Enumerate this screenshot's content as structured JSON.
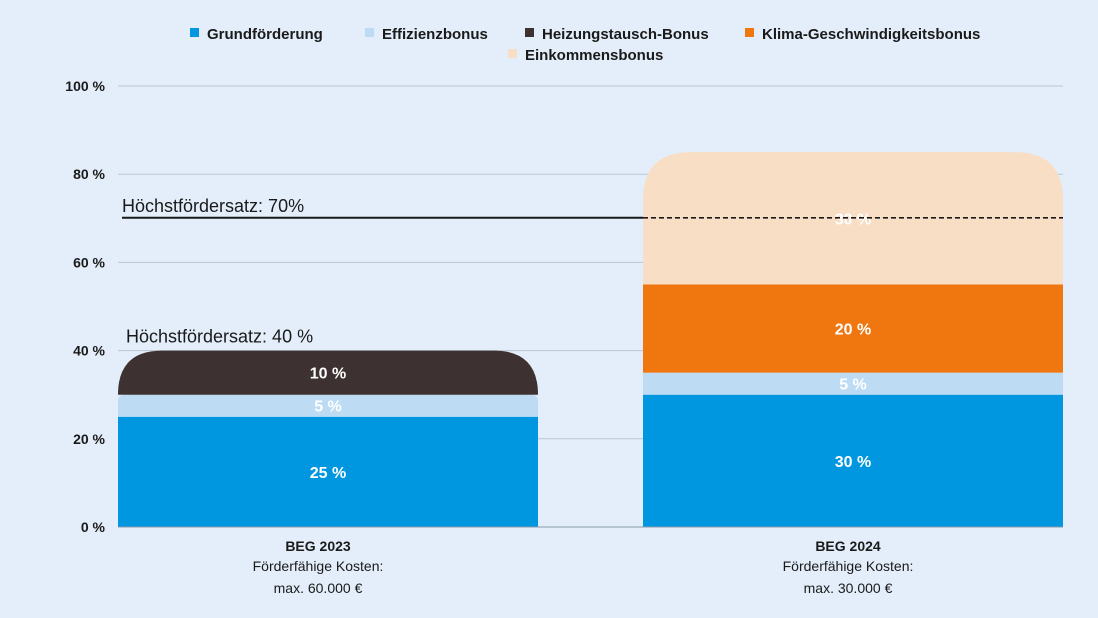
{
  "chart_data": {
    "type": "bar",
    "stacked": true,
    "categories": [
      "BEG 2023",
      "BEG 2024"
    ],
    "category_notes": [
      [
        "Förderfähige Kosten:",
        "max. 60.000 €"
      ],
      [
        "Förderfähige Kosten:",
        "max. 30.000 €"
      ]
    ],
    "series": [
      {
        "name": "Grundförderung",
        "color": "#0096e0",
        "values": [
          25,
          30
        ],
        "labels": [
          "25 %",
          "30 %"
        ]
      },
      {
        "name": "Effizienzbonus",
        "color": "#bddcf4",
        "values": [
          5,
          5
        ],
        "labels": [
          "5 %",
          "5 %"
        ]
      },
      {
        "name": "Heizungstausch-Bonus",
        "color": "#3d3231",
        "values": [
          10,
          0
        ],
        "labels": [
          "10 %",
          ""
        ]
      },
      {
        "name": "Klima-Geschwindigkeitsbonus",
        "color": "#f07610",
        "values": [
          0,
          20
        ],
        "labels": [
          "",
          "20 %"
        ]
      },
      {
        "name": "Einkommensbonus",
        "color": "#f8dec4",
        "values": [
          0,
          30
        ],
        "labels": [
          "",
          "30 %"
        ]
      }
    ],
    "y_ticks": [
      0,
      20,
      40,
      60,
      80,
      100
    ],
    "y_tick_labels": [
      "0 %",
      "20 %",
      "40 %",
      "60 %",
      "80 %",
      "100 %"
    ],
    "ylim": [
      0,
      100
    ],
    "grid": true,
    "legend_position": "top",
    "annotations": [
      {
        "text": "Höchstfördersatz: 40 %",
        "value": 40,
        "category": "BEG 2023"
      },
      {
        "text": "Höchstfördersatz: 70%",
        "value": 70,
        "category": "BEG 2024",
        "line": "solid-then-dashed"
      }
    ]
  }
}
